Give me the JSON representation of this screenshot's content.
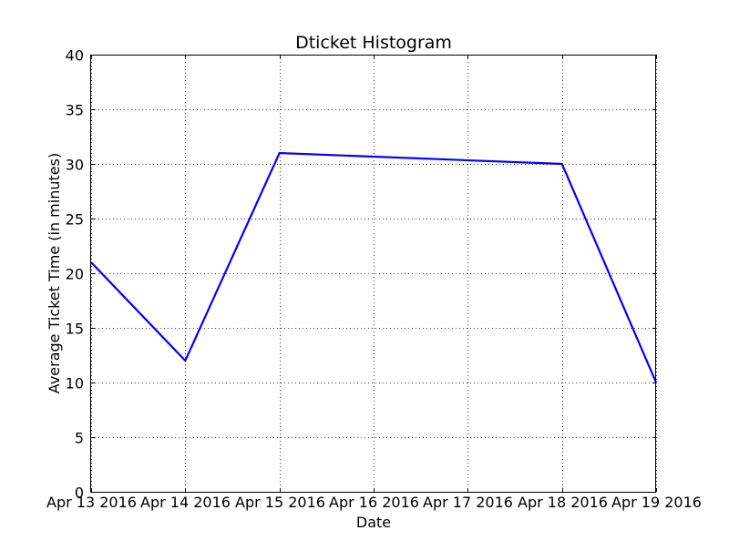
{
  "chart_data": {
    "type": "line",
    "title": "Dticket Histogram",
    "xlabel": "Date",
    "ylabel": "Average Ticket Time (in minutes)",
    "x_ticks": [
      "Apr 13 2016",
      "Apr 14 2016",
      "Apr 15 2016",
      "Apr 16 2016",
      "Apr 17 2016",
      "Apr 18 2016",
      "Apr 19 2016"
    ],
    "y_ticks": [
      "0",
      "5",
      "10",
      "15",
      "20",
      "25",
      "30",
      "35",
      "40"
    ],
    "xlim": [
      "2016-04-13",
      "2016-04-19"
    ],
    "ylim": [
      0,
      40
    ],
    "grid": true,
    "series": [
      {
        "color": "#0000ff",
        "x": [
          "2016-04-13",
          "2016-04-14",
          "2016-04-15",
          "2016-04-18",
          "2016-04-19"
        ],
        "y": [
          21,
          12,
          31,
          30,
          10
        ]
      }
    ]
  }
}
